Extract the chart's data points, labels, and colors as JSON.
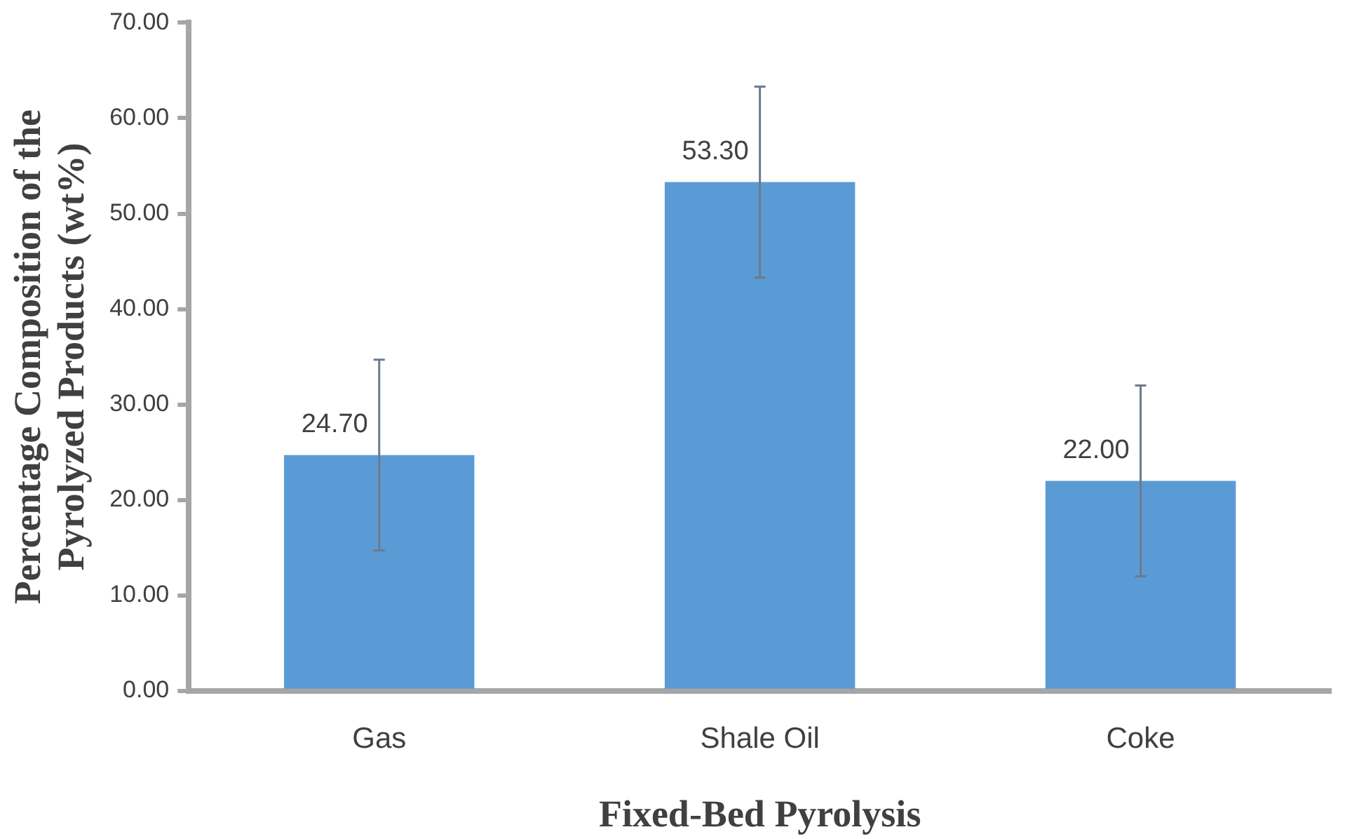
{
  "chart_data": {
    "type": "bar",
    "xlabel": "Fixed-Bed Pyrolysis",
    "ylabel": "Percentage Composition of the Pyrolyzed Products (wt%)",
    "categories": [
      "Gas",
      "Shale Oil",
      "Coke"
    ],
    "values": [
      24.7,
      53.3,
      22.0
    ],
    "value_labels": [
      "24.70",
      "53.30",
      "22.00"
    ],
    "errors": [
      10,
      10,
      10
    ],
    "color": "#5b9bd5",
    "ylim": [
      0,
      70
    ],
    "yticks": [
      {
        "value": 0,
        "label": "0.00"
      },
      {
        "value": 10,
        "label": "10.00"
      },
      {
        "value": 20,
        "label": "20.00"
      },
      {
        "value": 30,
        "label": "30.00"
      },
      {
        "value": 40,
        "label": "40.00"
      },
      {
        "value": 50,
        "label": "50.00"
      },
      {
        "value": 60,
        "label": "60.00"
      },
      {
        "value": 70,
        "label": "70.00"
      }
    ]
  }
}
